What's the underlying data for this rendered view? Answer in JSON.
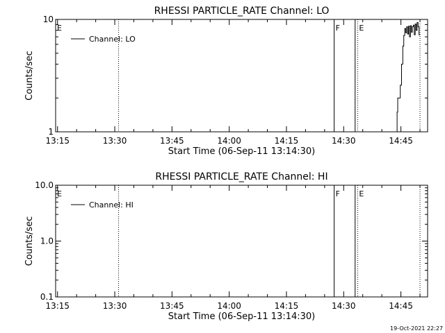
{
  "chart_data": [
    {
      "type": "line",
      "title": "RHESSI PARTICLE_RATE Channel: LO",
      "xlabel": "Start Time (06-Sep-11 13:14:30)",
      "ylabel": "Counts/sec",
      "yscale": "log",
      "ylim": [
        1,
        10
      ],
      "xlim": [
        "13:14:30",
        "14:52:00"
      ],
      "x_ticks": [
        "13:15",
        "13:30",
        "13:45",
        "14:00",
        "14:15",
        "14:30",
        "14:45"
      ],
      "y_ticks": [
        "1",
        "10"
      ],
      "grid": false,
      "legend": {
        "position": "top-left",
        "entries": [
          "Channel: LO"
        ]
      },
      "series": [
        {
          "name": "Channel: LO",
          "color": "#000000",
          "x": [
            "14:43:40",
            "14:44:00",
            "14:44:10",
            "14:44:30",
            "14:44:50",
            "14:45:10",
            "14:45:30",
            "14:45:45",
            "14:46:00",
            "14:46:15",
            "14:46:30",
            "14:46:45",
            "14:47:00",
            "14:47:15",
            "14:47:30",
            "14:47:45",
            "14:48:00",
            "14:48:15",
            "14:48:30",
            "14:48:45",
            "14:49:00",
            "14:49:15",
            "14:49:30",
            "14:49:45",
            "14:50:00"
          ],
          "y": [
            1.0,
            1.0,
            1.5,
            2.0,
            2.0,
            2.6,
            4.0,
            5.8,
            7.2,
            8.3,
            7.6,
            8.6,
            7.4,
            8.7,
            7.0,
            8.8,
            7.7,
            8.6,
            8.9,
            7.3,
            9.1,
            8.0,
            9.4,
            8.6,
            7.3
          ]
        }
      ],
      "vertical_markers": [
        {
          "x": "13:31:00",
          "style": "dotted"
        },
        {
          "x": "14:27:30",
          "style": "solid",
          "label": "F"
        },
        {
          "x": "14:33:00",
          "style": "solid"
        },
        {
          "x": "14:33:40",
          "style": "dotted",
          "label": "E"
        },
        {
          "x": "14:50:00",
          "style": "dotted"
        }
      ],
      "annotations": [
        {
          "text": "E",
          "x": "13:14:30"
        }
      ]
    },
    {
      "type": "line",
      "title": "RHESSI PARTICLE_RATE Channel: HI",
      "xlabel": "Start Time (06-Sep-11 13:14:30)",
      "ylabel": "Counts/sec",
      "yscale": "log",
      "ylim": [
        0.1,
        10
      ],
      "xlim": [
        "13:14:30",
        "14:52:00"
      ],
      "x_ticks": [
        "13:15",
        "13:30",
        "13:45",
        "14:00",
        "14:15",
        "14:30",
        "14:45"
      ],
      "y_ticks": [
        "0.1",
        "1.0",
        "10.0"
      ],
      "grid": false,
      "legend": {
        "position": "top-left",
        "entries": [
          "Channel: HI"
        ]
      },
      "series": [
        {
          "name": "Channel: HI",
          "color": "#000000",
          "x": [],
          "y": []
        }
      ],
      "vertical_markers": [
        {
          "x": "13:31:00",
          "style": "dotted"
        },
        {
          "x": "14:27:30",
          "style": "solid",
          "label": "F"
        },
        {
          "x": "14:33:00",
          "style": "solid"
        },
        {
          "x": "14:33:40",
          "style": "dotted",
          "label": "E"
        },
        {
          "x": "14:50:00",
          "style": "dotted"
        }
      ],
      "annotations": [
        {
          "text": "E",
          "x": "13:14:30"
        }
      ]
    }
  ],
  "footer": {
    "timestamp": "19-Oct-2021 22:27"
  }
}
